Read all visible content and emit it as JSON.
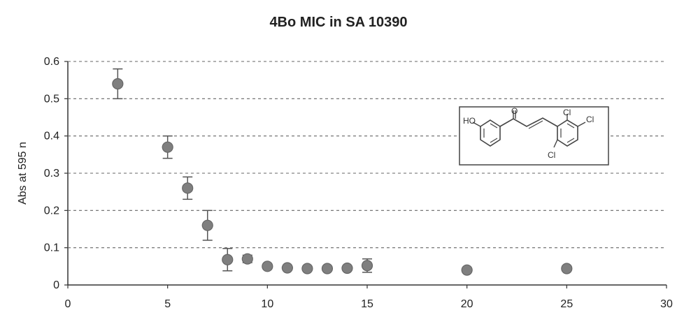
{
  "chart_data": {
    "type": "scatter",
    "title": "4Bo MIC in SA 10390",
    "xlabel": "",
    "ylabel": "Abs at 595 n",
    "xlim": [
      0,
      30
    ],
    "ylim": [
      0,
      0.6
    ],
    "x_ticks": [
      "0",
      "5",
      "10",
      "15",
      "20",
      "25",
      "30"
    ],
    "y_ticks": [
      "0",
      "0.1",
      "0.2",
      "0.3",
      "0.4",
      "0.5",
      "0.6"
    ],
    "grid": true,
    "points": [
      {
        "x": 2.5,
        "y": 0.54,
        "err": 0.04
      },
      {
        "x": 5,
        "y": 0.37,
        "err": 0.03
      },
      {
        "x": 6,
        "y": 0.26,
        "err": 0.03
      },
      {
        "x": 7,
        "y": 0.16,
        "err": 0.04
      },
      {
        "x": 8,
        "y": 0.068,
        "err": 0.03
      },
      {
        "x": 9,
        "y": 0.07,
        "err": 0.01
      },
      {
        "x": 10,
        "y": 0.05,
        "err": 0
      },
      {
        "x": 11,
        "y": 0.046,
        "err": 0
      },
      {
        "x": 12,
        "y": 0.044,
        "err": 0
      },
      {
        "x": 13,
        "y": 0.044,
        "err": 0
      },
      {
        "x": 14,
        "y": 0.045,
        "err": 0
      },
      {
        "x": 15,
        "y": 0.052,
        "err": 0.018
      },
      {
        "x": 20,
        "y": 0.04,
        "err": 0
      },
      {
        "x": 25,
        "y": 0.044,
        "err": 0
      }
    ],
    "marker_color": "#7f7f7f",
    "marker_stroke": "#666666",
    "error_bar_color": "#555555",
    "molecule": {
      "labels": [
        "HO",
        "O",
        "Cl",
        "Cl",
        "Cl"
      ]
    }
  }
}
